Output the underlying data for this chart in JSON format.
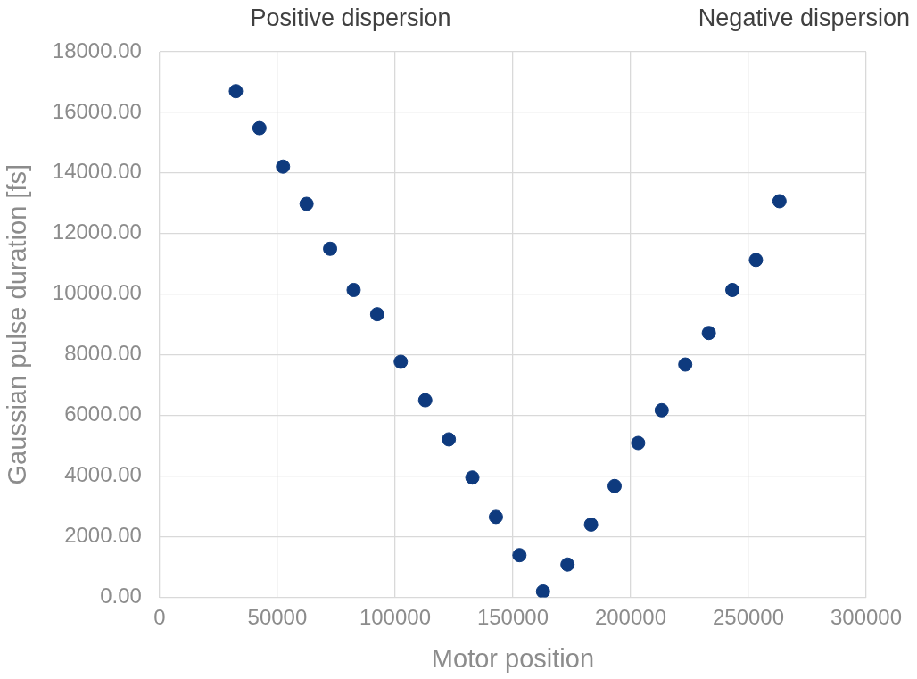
{
  "chart_data": {
    "type": "scatter",
    "xlabel": "Motor position",
    "ylabel": "Gaussian pulse duration [fs]",
    "annotations": [
      "Positive dispersion",
      "Negative dispersion"
    ],
    "series": [
      {
        "color": "#0e3a7e",
        "x": [
          32400,
          42400,
          52400,
          62400,
          72400,
          82400,
          92400,
          102400,
          112800,
          122800,
          132800,
          142800,
          152800,
          162800,
          173200,
          183200,
          193200,
          203200,
          213200,
          223200,
          233200,
          243200,
          253200,
          263200
        ],
        "values": [
          16700,
          15480,
          14210,
          12980,
          11500,
          10140,
          9340,
          7770,
          6500,
          5210,
          3950,
          2650,
          1390,
          190,
          1080,
          2400,
          3670,
          5090,
          6170,
          7680,
          8720,
          10140,
          11130,
          13070
        ]
      }
    ],
    "xlim": [
      0,
      300000
    ],
    "xticks": [
      0,
      50000,
      100000,
      150000,
      200000,
      250000,
      300000
    ],
    "ylim": [
      0,
      18000
    ],
    "yticks": [
      {
        "value": 0,
        "label": "0.00"
      },
      {
        "value": 2000,
        "label": "2000.00"
      },
      {
        "value": 4000,
        "label": "4000.00"
      },
      {
        "value": 6000,
        "label": "6000.00"
      },
      {
        "value": 8000,
        "label": "8000.00"
      },
      {
        "value": 10000,
        "label": "10000.00"
      },
      {
        "value": 12000,
        "label": "12000.00"
      },
      {
        "value": 14000,
        "label": "14000.00"
      },
      {
        "value": 16000,
        "label": "16000.00"
      },
      {
        "value": 18000,
        "label": "18000.00"
      }
    ],
    "grid": true,
    "legend": false,
    "marker": "circle"
  }
}
